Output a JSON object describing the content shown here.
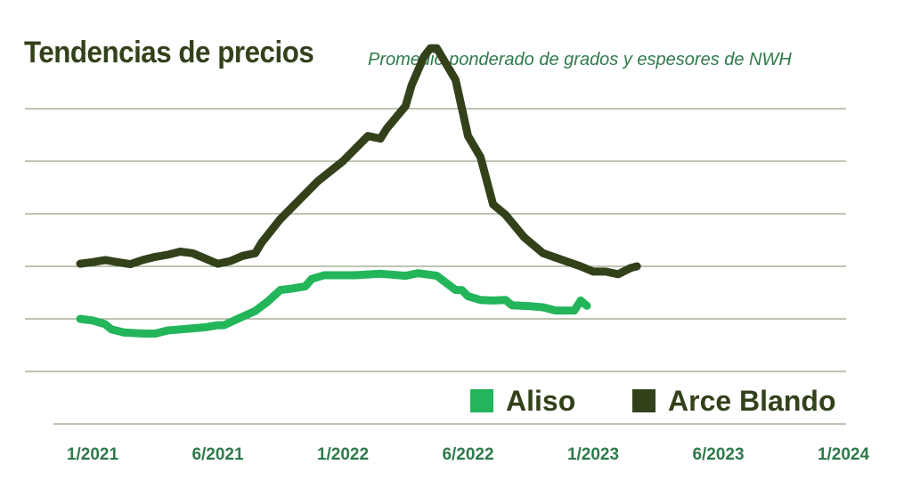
{
  "chart_data": {
    "type": "line",
    "title": "Tendencias de precios",
    "subtitle": "Promedio ponderado de grados y espesores de NWH",
    "xlabel": "",
    "ylabel": "",
    "x_ticks": [
      "1/2021",
      "6/2021",
      "1/2022",
      "6/2022",
      "1/2023",
      "6/2023",
      "1/2024"
    ],
    "grid": true,
    "legend_position": "bottom-right",
    "series": [
      {
        "name": "Aliso",
        "color": "#22b55a",
        "points": [
          [
            -0.5,
            2.0
          ],
          [
            0.0,
            1.97
          ],
          [
            0.5,
            1.9
          ],
          [
            0.75,
            1.8
          ],
          [
            1.25,
            1.74
          ],
          [
            2.0,
            1.72
          ],
          [
            2.5,
            1.72
          ],
          [
            3.0,
            1.78
          ],
          [
            3.5,
            1.8
          ],
          [
            4.0,
            1.82
          ],
          [
            4.5,
            1.84
          ],
          [
            5.0,
            1.88
          ],
          [
            5.25,
            1.88
          ],
          [
            5.75,
            1.99
          ],
          [
            6.5,
            2.15
          ],
          [
            7.0,
            2.33
          ],
          [
            7.5,
            2.55
          ],
          [
            8.0,
            2.58
          ],
          [
            8.5,
            2.62
          ],
          [
            8.75,
            2.76
          ],
          [
            9.25,
            2.83
          ],
          [
            9.75,
            2.83
          ],
          [
            10.5,
            2.83
          ],
          [
            11.5,
            2.86
          ],
          [
            12.5,
            2.82
          ],
          [
            13.0,
            2.87
          ],
          [
            13.75,
            2.82
          ],
          [
            14.5,
            2.55
          ],
          [
            14.75,
            2.55
          ],
          [
            15.0,
            2.43
          ],
          [
            15.5,
            2.36
          ],
          [
            16.0,
            2.35
          ],
          [
            16.5,
            2.36
          ],
          [
            16.75,
            2.26
          ],
          [
            17.5,
            2.24
          ],
          [
            18.0,
            2.22
          ],
          [
            18.5,
            2.16
          ],
          [
            19.25,
            2.16
          ],
          [
            19.5,
            2.35
          ],
          [
            19.75,
            2.25
          ]
        ]
      },
      {
        "name": "Arce Blando",
        "color": "#33411b",
        "points": [
          [
            -0.5,
            3.05
          ],
          [
            0.0,
            3.08
          ],
          [
            0.5,
            3.12
          ],
          [
            1.0,
            3.08
          ],
          [
            1.5,
            3.04
          ],
          [
            2.0,
            3.12
          ],
          [
            2.5,
            3.18
          ],
          [
            3.0,
            3.22
          ],
          [
            3.5,
            3.28
          ],
          [
            4.0,
            3.25
          ],
          [
            5.0,
            3.05
          ],
          [
            5.5,
            3.1
          ],
          [
            6.0,
            3.2
          ],
          [
            6.5,
            3.25
          ],
          [
            6.75,
            3.45
          ],
          [
            7.5,
            3.9
          ],
          [
            8.5,
            4.38
          ],
          [
            9.0,
            4.62
          ],
          [
            10.0,
            5.0
          ],
          [
            11.0,
            5.48
          ],
          [
            11.5,
            5.43
          ],
          [
            11.75,
            5.62
          ],
          [
            12.5,
            6.05
          ],
          [
            12.75,
            6.45
          ],
          [
            13.25,
            7.0
          ],
          [
            13.5,
            7.15
          ],
          [
            13.75,
            7.15
          ],
          [
            14.5,
            6.55
          ],
          [
            15.0,
            5.48
          ],
          [
            15.5,
            5.08
          ],
          [
            16.0,
            4.18
          ],
          [
            16.5,
            3.98
          ],
          [
            17.25,
            3.55
          ],
          [
            18.0,
            3.25
          ],
          [
            19.5,
            3.0
          ],
          [
            20.0,
            2.9
          ],
          [
            20.5,
            2.9
          ],
          [
            21.0,
            2.85
          ],
          [
            21.5,
            2.97
          ],
          [
            21.75,
            3.0
          ]
        ]
      }
    ]
  }
}
